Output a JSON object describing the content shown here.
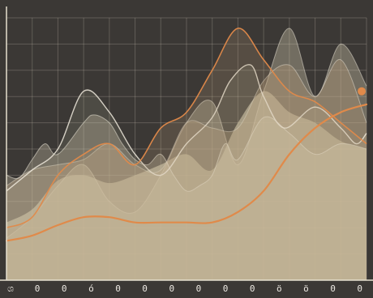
{
  "chart_data": {
    "type": "area",
    "title": "",
    "xlabel": "",
    "ylabel": "",
    "grid": true,
    "legend": "none",
    "xlim": [
      0,
      14
    ],
    "ylim": [
      0,
      100
    ],
    "x_ticks": [
      "ශ",
      "0",
      "0",
      "ó",
      "0",
      "0",
      "0",
      "0",
      "0",
      "0",
      "ö",
      "ö",
      "0",
      "0"
    ],
    "colors": {
      "background": "#3b3835",
      "area_fill": "#d9d2b5",
      "area_fill_alt": "#b89a77",
      "accent_line": "#e08a4a",
      "outline": "#efe9dc",
      "grid": "#e6dfcf",
      "tick_text": "#ece8e2"
    },
    "series": [
      {
        "x": [
          0,
          1,
          2,
          3,
          4,
          5,
          6,
          7,
          8,
          9,
          10,
          11,
          12,
          13,
          14
        ],
        "values": [
          22,
          27,
          38,
          40,
          37,
          40,
          44,
          48,
          42,
          60,
          72,
          64,
          60,
          53,
          50
        ]
      },
      {
        "x": [
          0,
          1,
          2,
          3,
          4,
          5,
          6,
          7,
          8,
          9,
          10,
          11,
          12,
          13,
          14
        ],
        "values": [
          16,
          24,
          36,
          44,
          30,
          26,
          40,
          60,
          68,
          44,
          72,
          96,
          70,
          90,
          74
        ]
      },
      {
        "x": [
          0,
          1,
          2,
          3,
          4,
          5,
          6,
          7,
          8,
          9,
          10,
          11,
          12,
          13,
          14
        ],
        "values": [
          36,
          42,
          44,
          46,
          52,
          44,
          42,
          60,
          58,
          58,
          76,
          82,
          70,
          84,
          60
        ]
      },
      {
        "x": [
          0,
          0.5,
          1,
          1.5,
          2,
          3,
          3.4,
          4,
          4.5,
          5,
          5.5,
          6,
          6.5,
          7,
          7.5,
          8,
          8.5,
          9,
          10,
          11,
          12,
          13,
          14
        ],
        "values": [
          40,
          39,
          46,
          52,
          48,
          60,
          63,
          60,
          52,
          46,
          44,
          48,
          40,
          34,
          36,
          40,
          52,
          46,
          62,
          56,
          48,
          52,
          50
        ]
      },
      {
        "x": [
          0,
          1,
          2,
          3,
          4,
          5,
          6,
          7,
          8,
          8.7,
          9.5,
          10,
          10.8,
          12,
          13,
          13.6,
          14
        ],
        "values": [
          34,
          42,
          50,
          72,
          64,
          48,
          40,
          52,
          62,
          76,
          82,
          70,
          58,
          66,
          58,
          52,
          56
        ]
      },
      {
        "x": [
          0,
          1,
          2,
          3,
          4,
          5,
          6,
          7,
          8,
          9,
          10,
          11,
          12,
          13,
          14
        ],
        "values": [
          20,
          24,
          40,
          48,
          52,
          44,
          58,
          64,
          80,
          96,
          84,
          72,
          68,
          60,
          52
        ]
      },
      {
        "x": [
          0,
          1,
          2,
          3,
          4,
          5,
          6,
          7,
          8,
          9,
          10,
          11,
          12,
          13,
          14
        ],
        "values": [
          15,
          17,
          21,
          24,
          24,
          22,
          22,
          22,
          22,
          26,
          34,
          48,
          58,
          64,
          67
        ]
      }
    ],
    "highlighted_point": {
      "x": 14,
      "y": 72
    }
  }
}
